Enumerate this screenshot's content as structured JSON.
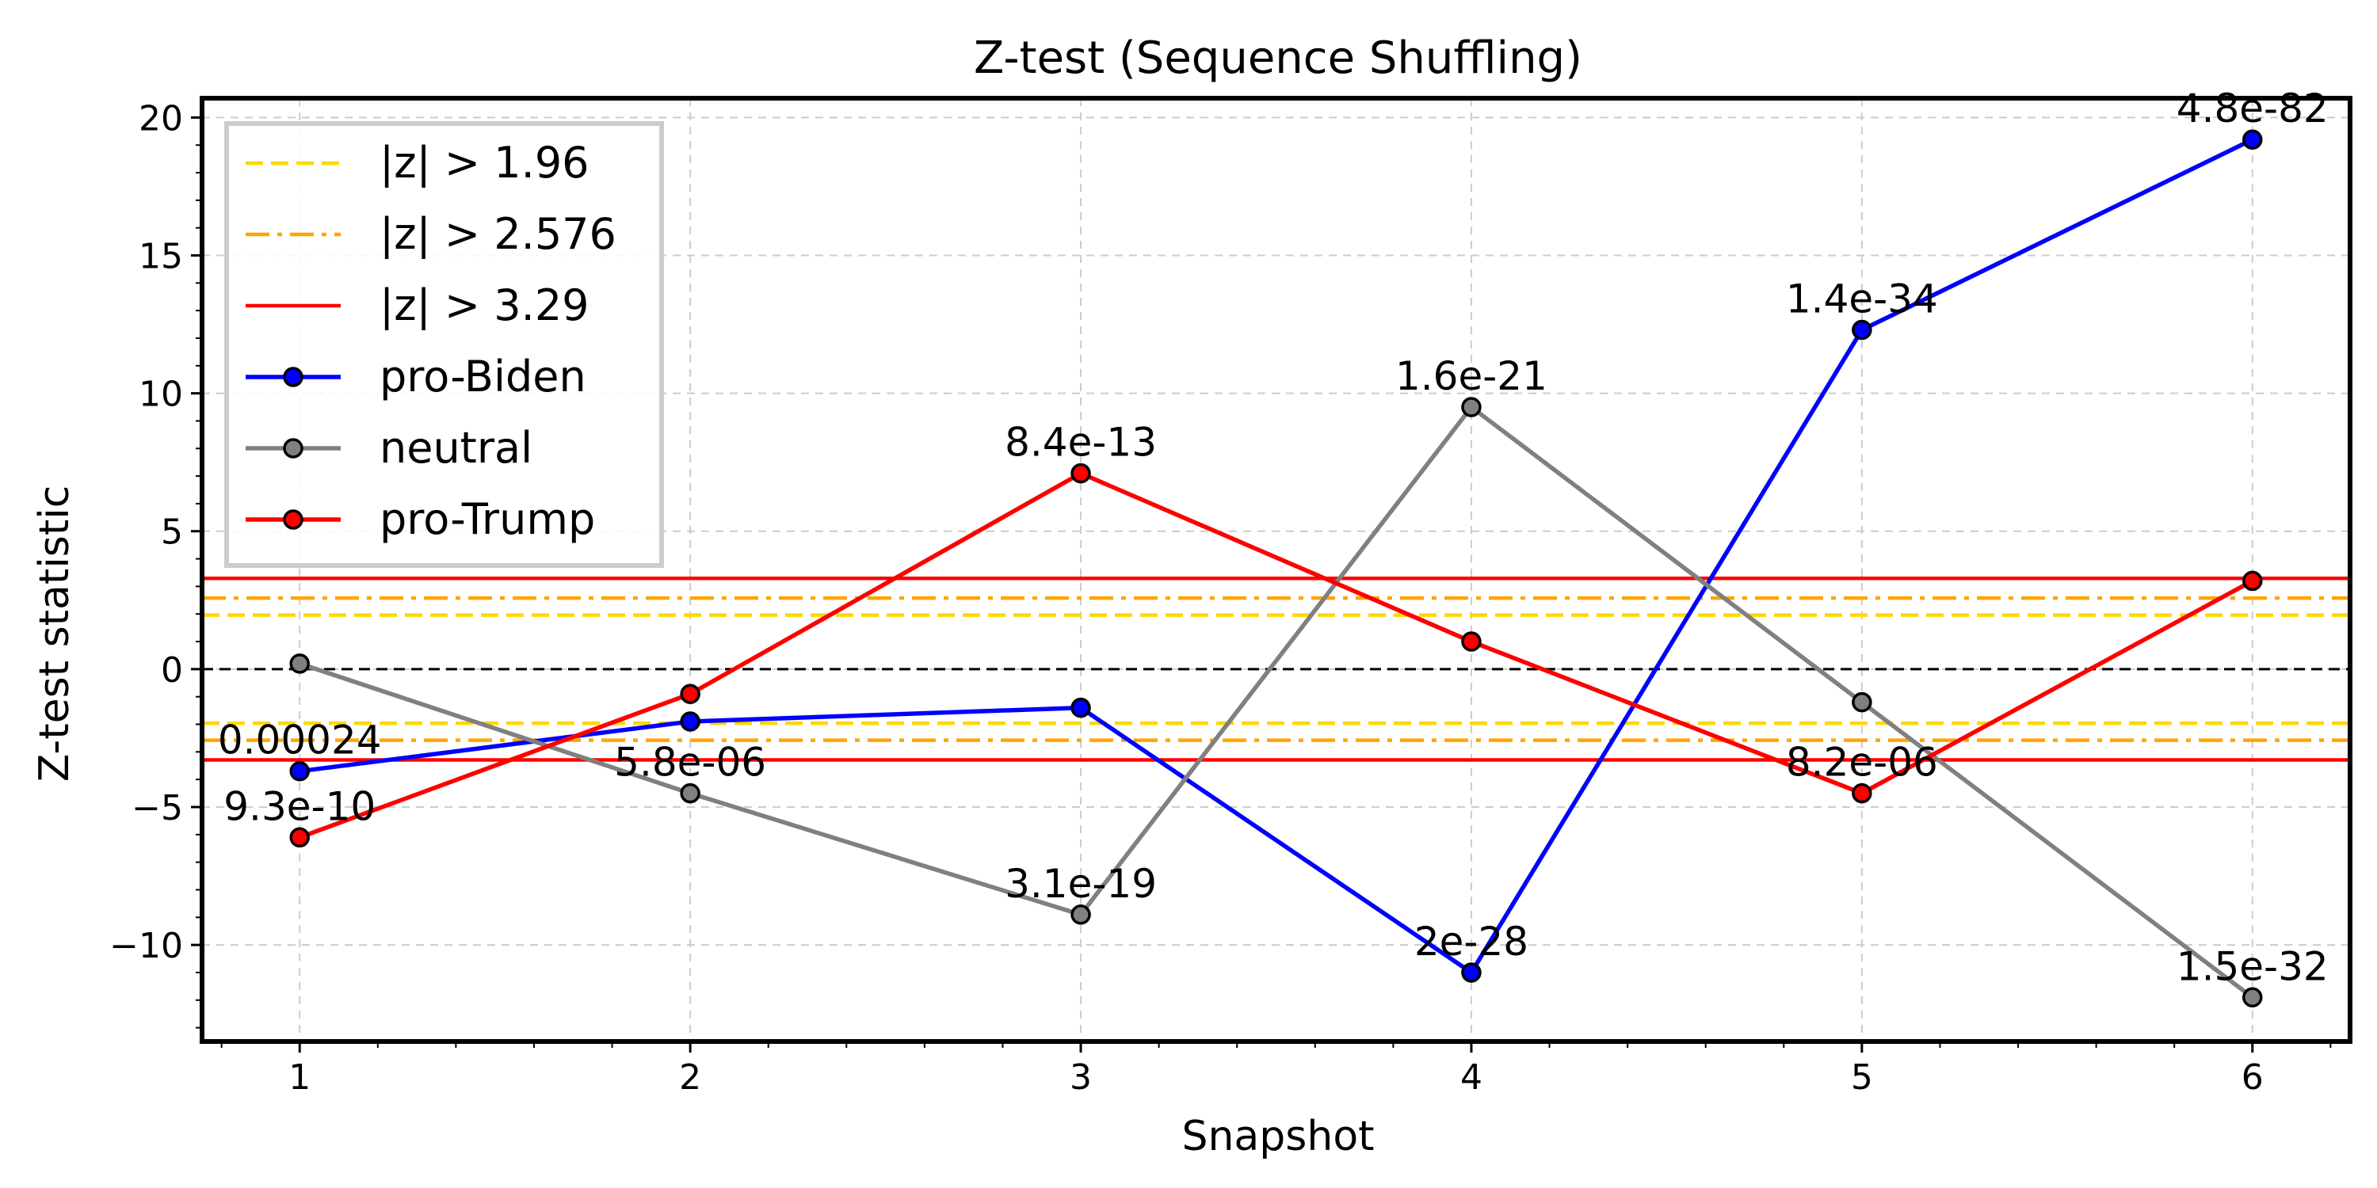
{
  "chart_data": {
    "type": "line",
    "title": "Z-test (Sequence Shuffling)",
    "xlabel": "Snapshot",
    "ylabel": "Z-test statistic",
    "x": [
      1,
      2,
      3,
      4,
      5,
      6
    ],
    "xlim": [
      0.75,
      6.25
    ],
    "ylim": [
      -13.5,
      20.7
    ],
    "xticks": [
      "1",
      "2",
      "3",
      "4",
      "5",
      "6"
    ],
    "yticks": [
      {
        "value": 20,
        "label": "20"
      },
      {
        "value": 15,
        "label": "15"
      },
      {
        "value": 10,
        "label": "10"
      },
      {
        "value": 5,
        "label": "5"
      },
      {
        "value": 0,
        "label": "0"
      },
      {
        "value": -5,
        "label": "−5"
      },
      {
        "value": -10,
        "label": "−10"
      }
    ],
    "grid": true,
    "legend_position": "top-left",
    "thresholds": [
      {
        "name": "|z| > 1.96",
        "value": 1.96,
        "color": "#FFD700",
        "style": "dashed"
      },
      {
        "name": "|z| > 2.576",
        "value": 2.576,
        "color": "#FFA500",
        "style": "dashdot"
      },
      {
        "name": "|z| > 3.29",
        "value": 3.29,
        "color": "#FF0000",
        "style": "solid"
      }
    ],
    "zero_line": {
      "value": 0,
      "color": "#000000",
      "style": "dashed"
    },
    "series": [
      {
        "name": "pro-Biden",
        "color": "#0000FF",
        "values": [
          -3.7,
          -1.9,
          -1.4,
          -11.0,
          12.3,
          19.2
        ],
        "annotations": [
          "0.00024",
          "",
          "",
          "2e-28",
          "1.4e-34",
          "4.8e-82"
        ]
      },
      {
        "name": "neutral",
        "color": "#808080",
        "values": [
          0.2,
          -4.5,
          -8.9,
          9.5,
          -1.2,
          -11.9
        ],
        "annotations": [
          "",
          "5.8e-06",
          "3.1e-19",
          "1.6e-21",
          "",
          "1.5e-32"
        ]
      },
      {
        "name": "pro-Trump",
        "color": "#FF0000",
        "values": [
          -6.1,
          -0.9,
          7.1,
          1.0,
          -4.5,
          3.2
        ],
        "annotations": [
          "9.3e-10",
          "",
          "8.4e-13",
          "",
          "8.2e-06",
          ""
        ]
      }
    ]
  }
}
